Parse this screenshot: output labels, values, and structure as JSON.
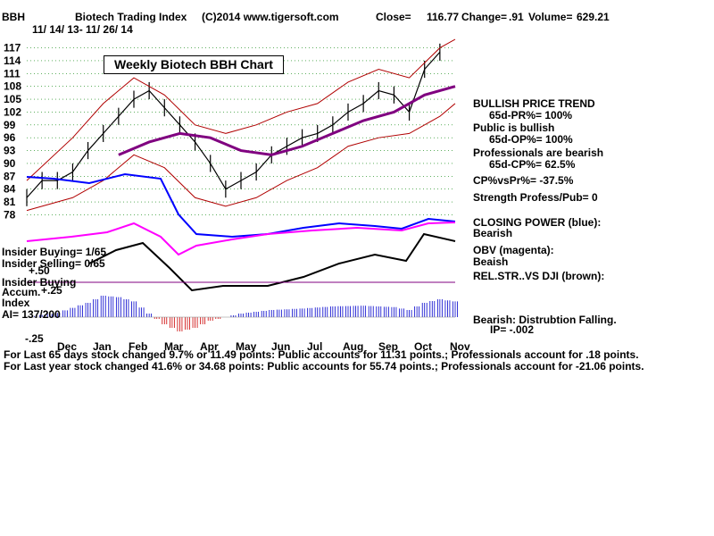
{
  "header": {
    "symbol": "BBH",
    "title": "Biotech Trading Index",
    "copyright": "(C)2014 www.tigersoft.com",
    "close_label": "Close=",
    "close_value": "116.77",
    "change_label": "Change=",
    "change_value": ".91",
    "volume_label": "Volume=",
    "volume_value": "629.21",
    "date_range": "11/ 14/ 13-  11/ 26/ 14"
  },
  "chart_box_title": "Weekly Biotech BBH Chart",
  "left_labels": {
    "insider_buying": "Insider Buying= 1/65",
    "insider_selling": "Insider Selling= 0/65",
    "plus_50": "+.50",
    "insider_buying2": "Insider Buying",
    "accum": "Accum.",
    "plus_25": "+.25",
    "index": "Index",
    "ai": "AI= 137/200",
    "minus_25": "-.25"
  },
  "right_panel": {
    "trend": "BULLISH PRICE TREND",
    "pr": "65d-PR%= 100%",
    "public": "Public is bullish",
    "op": "65d-OP%= 100%",
    "professionals": "Professionals are bearish",
    "cp": "65d-CP%= 62.5%",
    "cpvspr": "CP%vsPr%= -37.5%",
    "strength": "Strength Profess/Pub= 0",
    "closing_power": "CLOSING POWER (blue):",
    "closing_power_state": "Bearish",
    "obv": "OBV (magenta):",
    "obv_state": "Beaish",
    "relstr": "REL.STR..VS DJI (brown):",
    "bearish_dist": "Bearish: Distrubtion Falling.",
    "ip": "IP= -.002"
  },
  "footer": {
    "line1": "For Last 65 days stock changed  9.7% or  11.49 points:  Public accounts for  11.31 points.;  Professionals account for  .18 points.",
    "line2": "For Last year stock changed  41.6% or  34.68 points:  Public accounts for  55.74 points.;  Professionals account for -21.06 points."
  },
  "colors": {
    "price": "#000000",
    "ma": "#800080",
    "band": "#b00000",
    "closing_power": "#0000ff",
    "obv": "#ff00ff",
    "relstr": "#000000",
    "accum_pos": "#0000cc",
    "accum_neg": "#cc0000",
    "grid": "#008000"
  },
  "chart_data": {
    "type": "line",
    "title": "Weekly Biotech BBH Chart",
    "y_ticks": [
      78,
      81,
      84,
      87,
      90,
      93,
      96,
      99,
      102,
      105,
      108,
      111,
      114,
      117
    ],
    "ylim": [
      76,
      119
    ],
    "x_months": [
      "Dec",
      "Jan",
      "Feb",
      "Mar",
      "Apr",
      "May",
      "Jun",
      "Jul",
      "Aug",
      "Sep",
      "Oct",
      "Nov"
    ],
    "series": [
      {
        "name": "Price",
        "x": [
          0,
          2,
          4,
          6,
          8,
          10,
          12,
          14,
          16,
          18,
          20,
          22,
          24,
          26,
          28,
          30,
          32,
          34,
          36,
          38,
          40,
          42,
          44,
          46,
          48,
          50,
          52,
          54
        ],
        "values": [
          82,
          86,
          86,
          88,
          93,
          97,
          101,
          105,
          107,
          103,
          99,
          95,
          90,
          84,
          86,
          88,
          92,
          94,
          96,
          97,
          99,
          102,
          104,
          107,
          106,
          102,
          112,
          116
        ]
      },
      {
        "name": "Moving Average",
        "x": [
          12,
          16,
          20,
          24,
          28,
          32,
          36,
          40,
          44,
          48,
          52,
          56
        ],
        "values": [
          92,
          95,
          97,
          96,
          93,
          92,
          94,
          97,
          100,
          102,
          106,
          108
        ]
      },
      {
        "name": "Upper Band",
        "x": [
          0,
          6,
          10,
          14,
          18,
          22,
          26,
          30,
          34,
          38,
          42,
          46,
          50,
          54,
          56
        ],
        "values": [
          86,
          96,
          104,
          110,
          106,
          99,
          97,
          99,
          102,
          104,
          109,
          112,
          110,
          117,
          119
        ]
      },
      {
        "name": "Lower Band",
        "x": [
          0,
          6,
          10,
          14,
          18,
          22,
          26,
          30,
          34,
          38,
          42,
          46,
          50,
          54,
          56
        ],
        "values": [
          79,
          82,
          86,
          92,
          89,
          82,
          80,
          82,
          86,
          89,
          94,
          96,
          97,
          101,
          104
        ]
      }
    ],
    "accum_index": {
      "ylim": [
        -0.25,
        0.5
      ],
      "x": [
        0,
        4,
        8,
        10,
        12,
        14,
        16,
        18,
        20,
        22,
        24,
        28,
        32,
        36,
        40,
        44,
        48,
        50,
        52,
        54,
        56
      ],
      "values": [
        0,
        0.06,
        0.2,
        0.3,
        0.28,
        0.22,
        0.05,
        -0.1,
        -0.2,
        -0.15,
        -0.05,
        0.05,
        0.1,
        0.12,
        0.15,
        0.16,
        0.14,
        0.1,
        0.2,
        0.25,
        0.22
      ]
    }
  }
}
